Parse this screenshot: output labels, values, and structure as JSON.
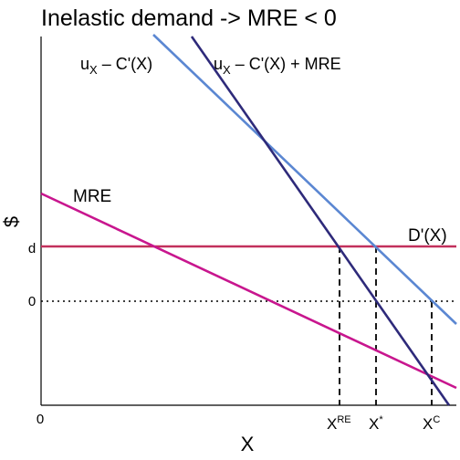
{
  "title": "Inelastic demand -> MRE < 0",
  "axes": {
    "y_symbol": "$",
    "x_symbol": "X",
    "origin": "0",
    "y_ticks": [
      "d",
      "0"
    ]
  },
  "curves": {
    "upper_left": {
      "base": "u",
      "sub": "X",
      "rest": " – C'(X)"
    },
    "upper_right": {
      "base": "u",
      "sub": "X",
      "rest": " – C'(X) + MRE"
    },
    "mre": "MRE",
    "demand": "D'(X)"
  },
  "x_ticks": {
    "xre": {
      "base": "X",
      "sup": "RE"
    },
    "xstar": {
      "base": "X",
      "sup": "*"
    },
    "xc": {
      "base": "X",
      "sup": "C"
    }
  },
  "colors": {
    "light_blue": "#5b87d2",
    "dark_blue": "#2e2a7a",
    "magenta": "#c8168e",
    "demand": "#c2305c",
    "axis": "#000000"
  }
}
